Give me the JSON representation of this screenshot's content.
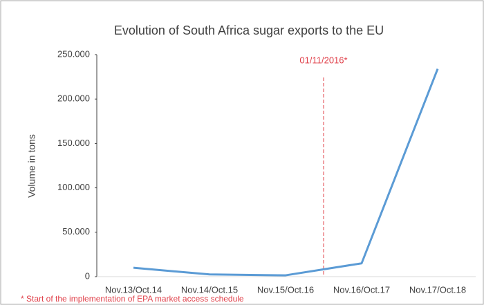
{
  "chart_data": {
    "type": "line",
    "title": "Evolution of South Africa sugar exports to the EU",
    "y_label": "Volume in tons",
    "categories": [
      "Nov.13/Oct.14",
      "Nov.14/Oct.15",
      "Nov.15/Oct.16",
      "Nov.16/Oct.17",
      "Nov.17/Oct.18"
    ],
    "series": [
      {
        "name": "Sugar exports",
        "color": "#5b9bd5",
        "values": [
          10000,
          2500,
          1500,
          15000,
          234000
        ]
      }
    ],
    "ylim": [
      0,
      250000
    ],
    "yticks": [
      0,
      {
        "value": 50000,
        "label": "50.000"
      },
      {
        "value": 100000,
        "label": "100.000"
      },
      {
        "value": 150000,
        "label": "150.000"
      },
      {
        "value": 200000,
        "label": "200.000"
      },
      {
        "value": 250000,
        "label": "250.000"
      }
    ],
    "grid": false,
    "annotation": "01/11/2016*",
    "annotation_color": "#e0404a",
    "footnote": "* Start of the implementation of EPA market access schedule"
  }
}
